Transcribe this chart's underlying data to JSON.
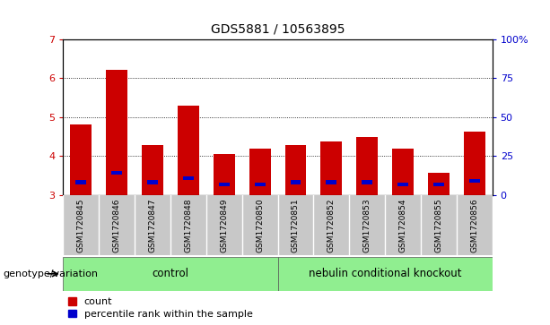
{
  "title": "GDS5881 / 10563895",
  "samples": [
    "GSM1720845",
    "GSM1720846",
    "GSM1720847",
    "GSM1720848",
    "GSM1720849",
    "GSM1720850",
    "GSM1720851",
    "GSM1720852",
    "GSM1720853",
    "GSM1720854",
    "GSM1720855",
    "GSM1720856"
  ],
  "red_values": [
    4.82,
    6.22,
    4.28,
    5.28,
    4.05,
    4.18,
    4.28,
    4.38,
    4.48,
    4.18,
    3.58,
    4.62
  ],
  "blue_values": [
    3.28,
    3.52,
    3.28,
    3.38,
    3.22,
    3.22,
    3.28,
    3.28,
    3.28,
    3.22,
    3.22,
    3.32
  ],
  "y_min": 3.0,
  "y_max": 7.0,
  "y_ticks_left": [
    3,
    4,
    5,
    6,
    7
  ],
  "right_axis_labels": [
    "0",
    "25",
    "50",
    "75",
    "100%"
  ],
  "control_samples": 6,
  "knockout_samples": 6,
  "control_label": "control",
  "knockout_label": "nebulin conditional knockout",
  "genotype_label": "genotype/variation",
  "legend_count": "count",
  "legend_percentile": "percentile rank within the sample",
  "red_color": "#cc0000",
  "blue_color": "#0000cc",
  "bar_width": 0.6,
  "cell_bg": "#c8c8c8",
  "green_bg": "#90EE90",
  "title_fontsize": 10,
  "tick_fontsize": 8,
  "sample_fontsize": 6.5,
  "label_fontsize": 8.5,
  "legend_fontsize": 8
}
